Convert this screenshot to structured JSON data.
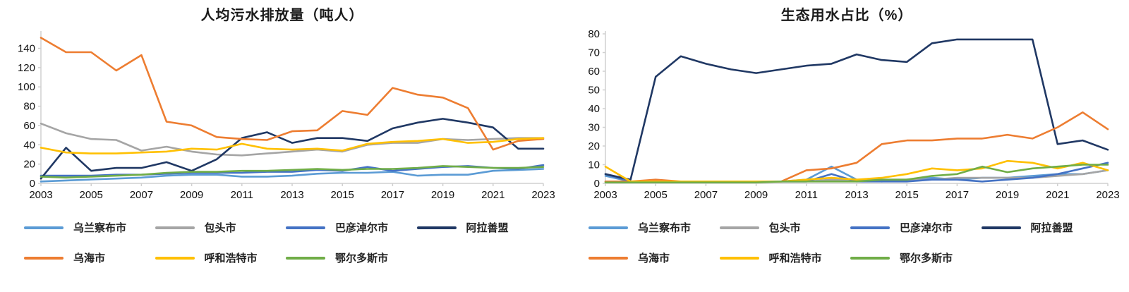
{
  "page": {
    "background": "#ffffff",
    "axis_color": "#d0d0d0"
  },
  "chart_data": [
    {
      "type": "line",
      "title": "人均污水排放量（吨人）",
      "xlabel": "",
      "ylabel": "",
      "grid": false,
      "legend_position": "bottom",
      "x": [
        2003,
        2004,
        2005,
        2006,
        2007,
        2008,
        2009,
        2010,
        2011,
        2012,
        2013,
        2014,
        2015,
        2016,
        2017,
        2018,
        2019,
        2020,
        2021,
        2022,
        2023
      ],
      "xticks": [
        2003,
        2005,
        2007,
        2009,
        2011,
        2013,
        2015,
        2017,
        2019,
        2021,
        2023
      ],
      "xlim": [
        2003,
        2023
      ],
      "ylim": [
        0,
        155
      ],
      "yticks": [
        0,
        20,
        40,
        60,
        80,
        100,
        120,
        140
      ],
      "series": [
        {
          "name": "乌兰察布市",
          "color": "#5B9BD5",
          "values": [
            2,
            3,
            4,
            5,
            6,
            8,
            9,
            9,
            7,
            7,
            8,
            10,
            11,
            11,
            12,
            8,
            9,
            9,
            13,
            14,
            15
          ]
        },
        {
          "name": "包头市",
          "color": "#A5A5A5",
          "values": [
            62,
            52,
            46,
            45,
            34,
            38,
            33,
            30,
            29,
            31,
            33,
            35,
            33,
            40,
            42,
            42,
            46,
            45,
            46,
            47,
            47
          ]
        },
        {
          "name": "巴彦淖尔市",
          "color": "#4472C4",
          "values": [
            8,
            8,
            8,
            9,
            9,
            10,
            11,
            11,
            11,
            12,
            12,
            14,
            13,
            17,
            13,
            15,
            17,
            18,
            16,
            15,
            19
          ]
        },
        {
          "name": "阿拉善盟",
          "color": "#203864",
          "values": [
            5,
            37,
            13,
            16,
            16,
            22,
            13,
            25,
            47,
            53,
            42,
            47,
            47,
            44,
            57,
            63,
            67,
            63,
            58,
            36,
            36
          ]
        },
        {
          "name": "乌海市",
          "color": "#ED7D31",
          "values": [
            151,
            136,
            136,
            117,
            133,
            64,
            60,
            48,
            46,
            45,
            54,
            55,
            75,
            71,
            99,
            92,
            89,
            78,
            35,
            44,
            46
          ]
        },
        {
          "name": "呼和浩特市",
          "color": "#FFC000",
          "values": [
            37,
            32,
            31,
            31,
            32,
            33,
            36,
            35,
            41,
            36,
            35,
            36,
            34,
            41,
            43,
            44,
            46,
            42,
            43,
            46,
            47
          ]
        },
        {
          "name": "鄂尔多斯市",
          "color": "#70AD47",
          "values": [
            7,
            6,
            7,
            8,
            9,
            11,
            12,
            12,
            13,
            13,
            14,
            15,
            14,
            15,
            15,
            16,
            18,
            17,
            16,
            16,
            17
          ]
        }
      ]
    },
    {
      "type": "line",
      "title": "生态用水占比（%）",
      "xlabel": "",
      "ylabel": "",
      "grid": false,
      "legend_position": "bottom",
      "x": [
        2003,
        2004,
        2005,
        2006,
        2007,
        2008,
        2009,
        2010,
        2011,
        2012,
        2013,
        2014,
        2015,
        2016,
        2017,
        2018,
        2019,
        2020,
        2021,
        2022,
        2023
      ],
      "xticks": [
        2003,
        2005,
        2007,
        2009,
        2011,
        2013,
        2015,
        2017,
        2019,
        2021,
        2023
      ],
      "xlim": [
        2003,
        2023
      ],
      "ylim": [
        0,
        80
      ],
      "yticks": [
        0,
        10,
        20,
        30,
        40,
        50,
        60,
        70,
        80
      ],
      "series": [
        {
          "name": "乌兰察布市",
          "color": "#5B9BD5",
          "values": [
            4,
            1,
            1,
            1,
            1,
            1,
            1,
            1,
            2,
            9,
            2,
            1,
            2,
            3,
            2,
            3,
            3,
            4,
            5,
            5,
            7
          ]
        },
        {
          "name": "包头市",
          "color": "#A5A5A5",
          "values": [
            1,
            1,
            1,
            1,
            1,
            1,
            1,
            1,
            1,
            2,
            2,
            2,
            2,
            2,
            3,
            3,
            3,
            3,
            4,
            5,
            7
          ]
        },
        {
          "name": "巴彦淖尔市",
          "color": "#4472C4",
          "values": [
            5,
            1,
            1,
            1,
            1,
            1,
            1,
            1,
            1,
            5,
            1,
            1,
            1,
            2,
            2,
            1,
            2,
            3,
            5,
            8,
            11
          ]
        },
        {
          "name": "阿拉善盟",
          "color": "#203864",
          "values": [
            5,
            2,
            57,
            68,
            64,
            61,
            59,
            61,
            63,
            64,
            69,
            66,
            65,
            75,
            77,
            77,
            77,
            77,
            21,
            23,
            18
          ]
        },
        {
          "name": "乌海市",
          "color": "#ED7D31",
          "values": [
            1,
            1,
            2,
            1,
            1,
            1,
            1,
            1,
            7,
            8,
            11,
            21,
            23,
            23,
            24,
            24,
            26,
            24,
            30,
            38,
            29
          ]
        },
        {
          "name": "呼和浩特市",
          "color": "#FFC000",
          "values": [
            9,
            1,
            1,
            1,
            1,
            1,
            1,
            1,
            2,
            3,
            2,
            3,
            5,
            8,
            7,
            8,
            12,
            11,
            8,
            11,
            7
          ]
        },
        {
          "name": "鄂尔多斯市",
          "color": "#70AD47",
          "values": [
            0.5,
            0.5,
            0.5,
            0.5,
            0.5,
            0.5,
            0.5,
            1,
            1,
            1,
            1,
            2,
            2,
            4,
            5,
            9,
            6,
            8,
            9,
            10,
            10
          ]
        }
      ]
    }
  ]
}
